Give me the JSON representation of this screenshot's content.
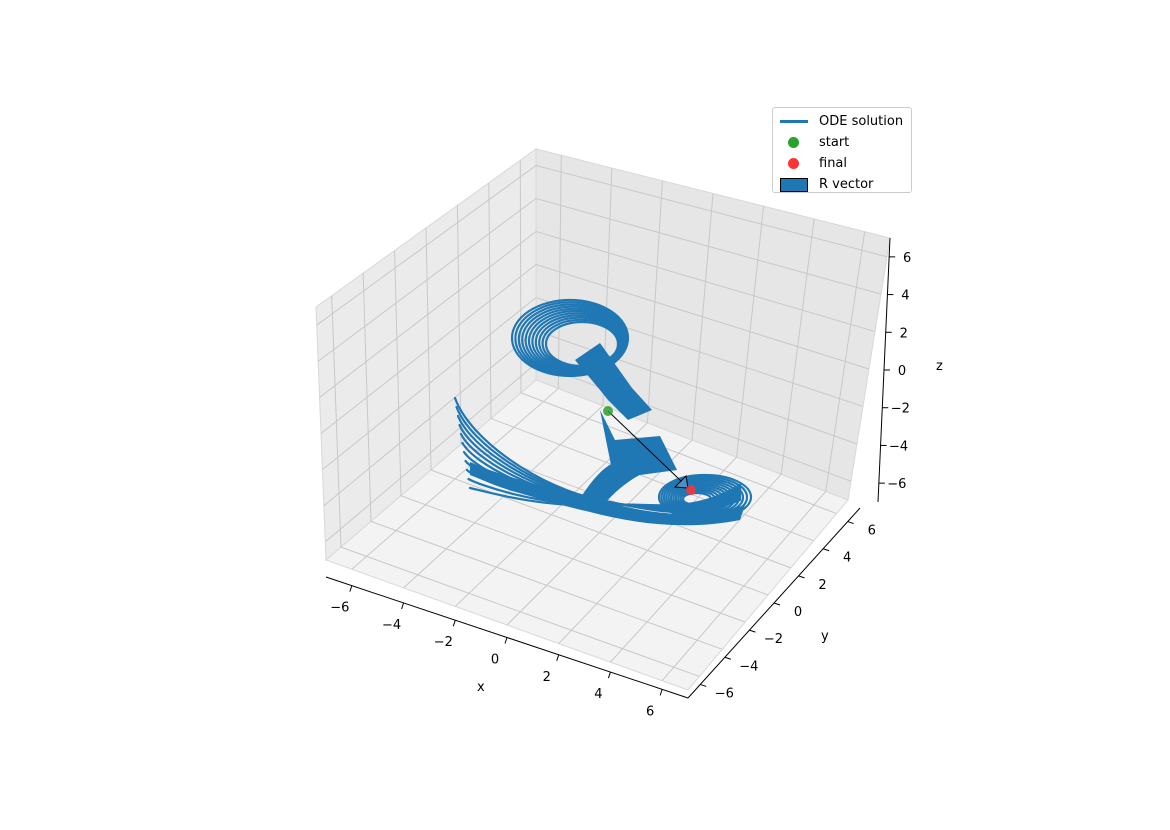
{
  "chart_data": {
    "type": "line",
    "subtype": "3d",
    "title": "",
    "xlabel": "x",
    "ylabel": "y",
    "zlabel": "z",
    "xlim": [
      -7,
      7
    ],
    "ylim": [
      -7,
      7
    ],
    "zlim": [
      -7,
      7
    ],
    "x_ticks": [
      "−6",
      "−4",
      "−2",
      "0",
      "2",
      "4",
      "6"
    ],
    "y_ticks": [
      "−6",
      "−4",
      "−2",
      "0",
      "2",
      "4",
      "6"
    ],
    "z_ticks": [
      "−6",
      "−4",
      "−2",
      "0",
      "2",
      "4",
      "6"
    ],
    "grid": true,
    "legend_position": "top-right",
    "series": [
      {
        "name": "ODE solution",
        "kind": "trajectory",
        "color": "#1f77b4",
        "description_points": [
          [
            0.2,
            -3.4,
            2.0
          ],
          [
            -2.0,
            0.5,
            3.0
          ],
          [
            1.5,
            -2.0,
            0.5
          ],
          [
            3.0,
            0.0,
            -3.5
          ],
          [
            4.5,
            3.0,
            -4.5
          ]
        ]
      },
      {
        "name": "start",
        "kind": "point",
        "color": "#2ca02c",
        "point": [
          0.2,
          -3.4,
          2.0
        ]
      },
      {
        "name": "final",
        "kind": "point",
        "color": "#d62728",
        "point": [
          4.5,
          3.0,
          -4.5
        ]
      },
      {
        "name": "R vector",
        "kind": "arrow",
        "color": "#1f77b4",
        "from": [
          0.2,
          -3.4,
          2.0
        ],
        "to": [
          4.5,
          3.0,
          -4.5
        ]
      }
    ]
  },
  "legend": {
    "items": [
      {
        "label": "ODE solution",
        "kind": "line",
        "color": "#1f77b4"
      },
      {
        "label": "start",
        "kind": "dot",
        "color": "#2ca02c"
      },
      {
        "label": "final",
        "kind": "dot",
        "color": "#ff3333"
      },
      {
        "label": "R vector",
        "kind": "rect",
        "color": "#1f77b4"
      }
    ]
  }
}
